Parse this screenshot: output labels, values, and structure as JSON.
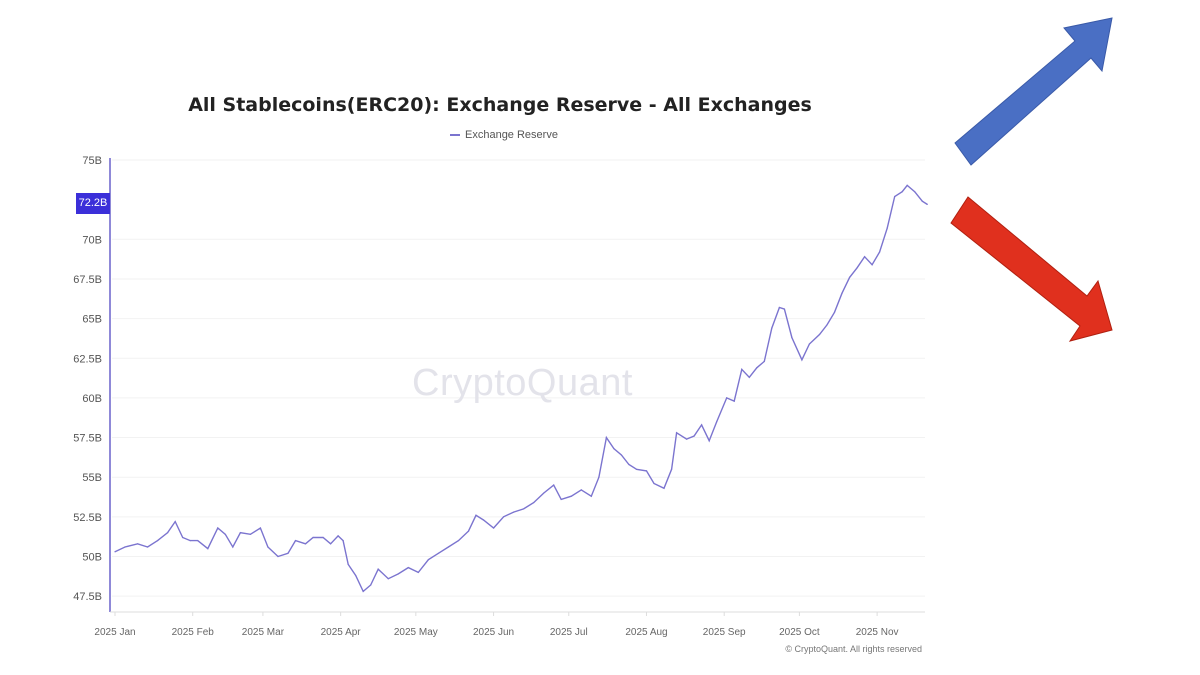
{
  "chart_data": {
    "type": "line",
    "title": "All Stablecoins(ERC20): Exchange Reserve - All Exchanges",
    "legend": [
      "Exchange Reserve"
    ],
    "legend_placement": "top-center",
    "watermark": "CryptoQuant",
    "copyright": "© CryptoQuant. All rights reserved",
    "ylim": [
      47.5,
      75
    ],
    "y_ticks": [
      "75B",
      "70B",
      "67.5B",
      "65B",
      "62.5B",
      "60B",
      "57.5B",
      "55B",
      "52.5B",
      "50B",
      "47.5B"
    ],
    "y_tick_values": [
      75,
      70,
      67.5,
      65,
      62.5,
      60,
      57.5,
      55,
      52.5,
      50,
      47.5
    ],
    "current_value_label": "72.2B",
    "current_value": 72.2,
    "x_ticks": [
      "2025 Jan",
      "2025 Feb",
      "2025 Mar",
      "2025 Apr",
      "2025 May",
      "2025 Jun",
      "2025 Jul",
      "2025 Aug",
      "2025 Sep",
      "2025 Oct",
      "2025 Nov"
    ],
    "x_tick_dates": [
      "2025-01-01",
      "2025-02-01",
      "2025-03-01",
      "2025-04-01",
      "2025-05-01",
      "2025-06-01",
      "2025-07-01",
      "2025-08-01",
      "2025-09-01",
      "2025-10-01",
      "2025-11-01"
    ],
    "grid": true,
    "line_color": "#7b74cf",
    "highlight_color": "#3b2fd9",
    "series": [
      {
        "name": "Exchange Reserve",
        "x": [
          "2025-01-01",
          "2025-01-05",
          "2025-01-10",
          "2025-01-14",
          "2025-01-18",
          "2025-01-22",
          "2025-01-25",
          "2025-01-28",
          "2025-01-31",
          "2025-02-03",
          "2025-02-07",
          "2025-02-11",
          "2025-02-14",
          "2025-02-17",
          "2025-02-20",
          "2025-02-24",
          "2025-02-28",
          "2025-03-03",
          "2025-03-07",
          "2025-03-11",
          "2025-03-14",
          "2025-03-18",
          "2025-03-21",
          "2025-03-25",
          "2025-03-28",
          "2025-03-31",
          "2025-04-02",
          "2025-04-04",
          "2025-04-07",
          "2025-04-10",
          "2025-04-13",
          "2025-04-16",
          "2025-04-20",
          "2025-04-24",
          "2025-04-28",
          "2025-05-02",
          "2025-05-06",
          "2025-05-10",
          "2025-05-14",
          "2025-05-18",
          "2025-05-22",
          "2025-05-25",
          "2025-05-28",
          "2025-06-01",
          "2025-06-05",
          "2025-06-09",
          "2025-06-13",
          "2025-06-17",
          "2025-06-21",
          "2025-06-25",
          "2025-06-28",
          "2025-07-02",
          "2025-07-06",
          "2025-07-10",
          "2025-07-13",
          "2025-07-16",
          "2025-07-19",
          "2025-07-22",
          "2025-07-25",
          "2025-07-28",
          "2025-08-01",
          "2025-08-04",
          "2025-08-08",
          "2025-08-11",
          "2025-08-13",
          "2025-08-17",
          "2025-08-20",
          "2025-08-23",
          "2025-08-26",
          "2025-08-29",
          "2025-09-02",
          "2025-09-05",
          "2025-09-08",
          "2025-09-11",
          "2025-09-14",
          "2025-09-17",
          "2025-09-20",
          "2025-09-23",
          "2025-09-25",
          "2025-09-28",
          "2025-10-02",
          "2025-10-05",
          "2025-10-09",
          "2025-10-12",
          "2025-10-15",
          "2025-10-18",
          "2025-10-21",
          "2025-10-24",
          "2025-10-27",
          "2025-10-30",
          "2025-11-02",
          "2025-11-05",
          "2025-11-08",
          "2025-11-11",
          "2025-11-13",
          "2025-11-16",
          "2025-11-19",
          "2025-11-21"
        ],
        "values": [
          50.3,
          50.6,
          50.8,
          50.6,
          51.0,
          51.5,
          52.2,
          51.2,
          51.0,
          51.0,
          50.5,
          51.8,
          51.4,
          50.6,
          51.5,
          51.4,
          51.8,
          50.6,
          50.0,
          50.2,
          51.0,
          50.8,
          51.2,
          51.2,
          50.8,
          51.3,
          51.0,
          49.5,
          48.8,
          47.8,
          48.2,
          49.2,
          48.6,
          48.9,
          49.3,
          49.0,
          49.8,
          50.2,
          50.6,
          51.0,
          51.6,
          52.6,
          52.3,
          51.8,
          52.5,
          52.8,
          53.0,
          53.4,
          54.0,
          54.5,
          53.6,
          53.8,
          54.2,
          53.8,
          55.0,
          57.5,
          56.8,
          56.4,
          55.8,
          55.5,
          55.4,
          54.6,
          54.3,
          55.5,
          57.8,
          57.4,
          57.6,
          58.3,
          57.3,
          58.5,
          60.0,
          59.8,
          61.8,
          61.3,
          61.9,
          62.3,
          64.4,
          65.7,
          65.6,
          63.8,
          62.4,
          63.4,
          64.0,
          64.6,
          65.4,
          66.6,
          67.6,
          68.2,
          68.9,
          68.4,
          69.2,
          70.7,
          72.7,
          73.0,
          73.4,
          73.0,
          72.4,
          72.2
        ]
      }
    ]
  },
  "arrows": [
    {
      "direction": "up",
      "color": "#4a6fc4"
    },
    {
      "direction": "down",
      "color": "#e0301e"
    }
  ]
}
